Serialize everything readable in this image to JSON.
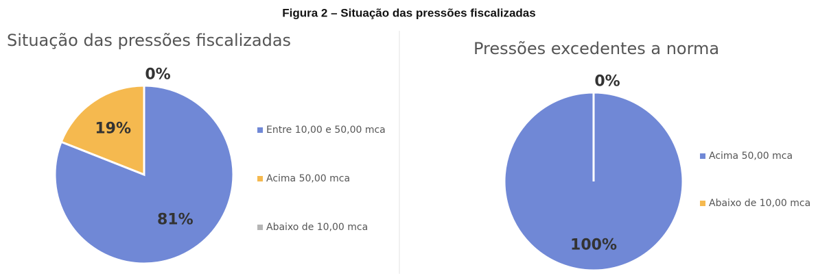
{
  "figure_title": "Figura 2 – Situação das pressões fiscalizadas",
  "chart_data": [
    {
      "type": "pie",
      "title": "Situação das pressões fiscalizadas",
      "categories": [
        "Entre 10,00 e 50,00 mca",
        "Acima 50,00 mca",
        "Abaixo de 10,00 mca"
      ],
      "values": [
        81,
        19,
        0
      ],
      "value_labels": [
        "81%",
        "19%",
        "0%"
      ],
      "colors": [
        "#7088d6",
        "#f5b94f",
        "#b5b5b5"
      ]
    },
    {
      "type": "pie",
      "title": "Pressões excedentes a norma",
      "categories": [
        "Acima 50,00 mca",
        "Abaixo de 10,00 mca"
      ],
      "values": [
        100,
        0
      ],
      "value_labels": [
        "100%",
        "0%"
      ],
      "colors": [
        "#7088d6",
        "#f5b94f"
      ]
    }
  ]
}
